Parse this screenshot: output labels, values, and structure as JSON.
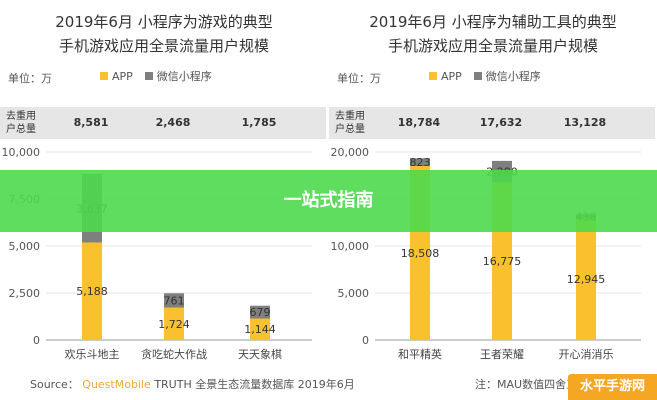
{
  "overlay": {
    "text": "一站式指南"
  },
  "watermark": {
    "text": "水平手游网"
  },
  "source": {
    "prefix": "Source：",
    "brand": "QuestMobile",
    "rest": "TRUTH 全景生态流量数据库 2019年6月"
  },
  "source_right": {
    "text": "注：MAU数值四舍五入取整"
  },
  "colors": {
    "app": "#f9c12e",
    "mini": "#7f7f7f",
    "grid": "#e5e5e5",
    "axis": "#999999"
  },
  "chart_data": [
    {
      "type": "bar",
      "title_line1": "2019年6月 小程序为游戏的典型",
      "title_line2": "手机游戏应用全景流量用户规模",
      "unit": "单位：万",
      "legend": [
        "APP",
        "微信小程序"
      ],
      "users_header": [
        "去重用",
        "户总量"
      ],
      "categories": [
        "欢乐斗地主",
        "贪吃蛇大作战",
        "天天象棋"
      ],
      "users_total": [
        "8,581",
        "2,468",
        "1,785"
      ],
      "series": [
        {
          "name": "APP",
          "values": [
            5188,
            1724,
            1144
          ],
          "labels": [
            "5,188",
            "1,724",
            "1,144"
          ]
        },
        {
          "name": "微信小程序",
          "values": [
            3637,
            761,
            679
          ],
          "labels": [
            "3,637",
            "761",
            "679"
          ]
        }
      ],
      "ylim": [
        0,
        10000
      ],
      "yticks": [
        0,
        2500,
        5000,
        7500,
        10000
      ],
      "ytick_labels": [
        "0",
        "2,500",
        "5,000",
        "7,500",
        "10,000"
      ]
    },
    {
      "type": "bar",
      "title_line1": "2019年6月 小程序为辅助工具的典型",
      "title_line2": "手机游戏应用全景流量用户规模",
      "unit": "单位：万",
      "legend": [
        "APP",
        "微信小程序"
      ],
      "users_header": [
        "去重用",
        "户总量"
      ],
      "categories": [
        "和平精英",
        "王者荣耀",
        "开心消消乐"
      ],
      "users_total": [
        "18,784",
        "17,632",
        "13,128"
      ],
      "series": [
        {
          "name": "APP",
          "values": [
            18508,
            16775,
            12945
          ],
          "labels": [
            "18,508",
            "16,775",
            "12,945"
          ]
        },
        {
          "name": "微信小程序",
          "values": [
            823,
            2280,
            438
          ],
          "labels": [
            "823",
            "2,280",
            "438"
          ]
        }
      ],
      "ylim": [
        0,
        20000
      ],
      "yticks": [
        0,
        5000,
        10000,
        15000,
        20000
      ],
      "ytick_labels": [
        "0",
        "5,000",
        "10,000",
        "15,000",
        "20,000"
      ]
    }
  ]
}
